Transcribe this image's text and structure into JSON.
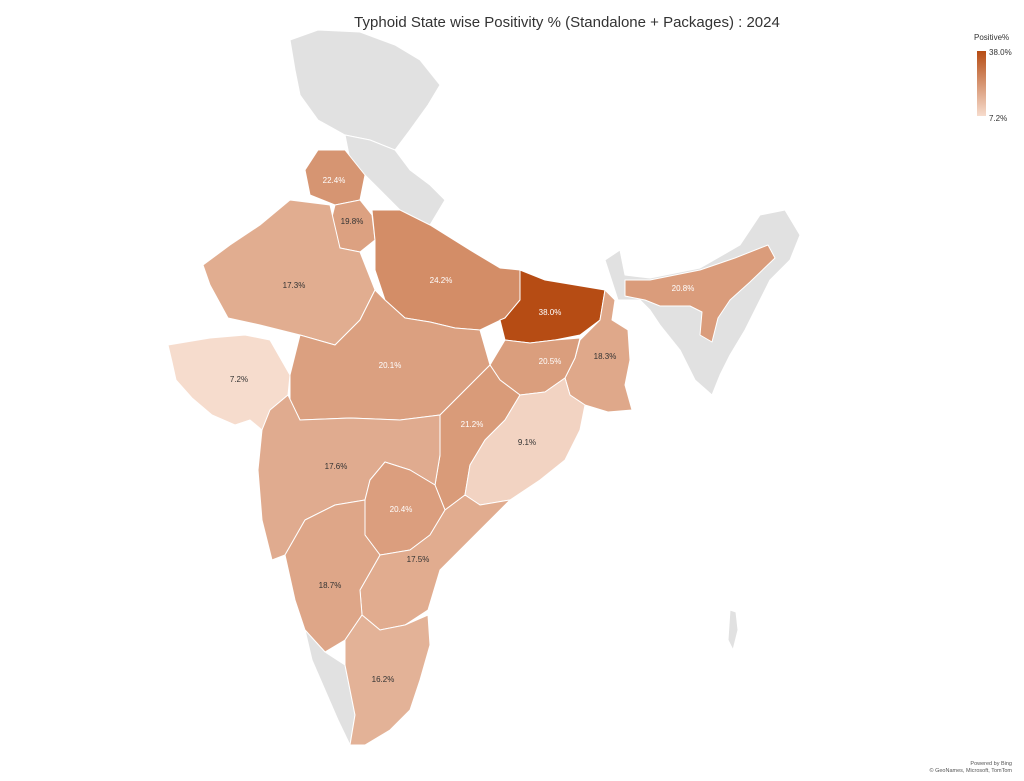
{
  "title": "Typhoid State wise Positivity % (Standalone + Packages) : 2024",
  "legend": {
    "title": "Positive%",
    "max_label": "38.0%",
    "min_label": "7.2%",
    "color_low": "#f6dccd",
    "color_high": "#b64c14",
    "no_data_color": "#e1e1e1"
  },
  "attribution": {
    "line1": "Powered by Bing",
    "line2": "© GeoNames, Microsoft, TomTom"
  },
  "regions": [
    {
      "name": "Punjab",
      "value": 22.4,
      "label": "22.4%"
    },
    {
      "name": "Haryana",
      "value": 19.8,
      "label": "19.8%"
    },
    {
      "name": "Rajasthan",
      "value": 17.3,
      "label": "17.3%"
    },
    {
      "name": "Uttar Pradesh",
      "value": 24.2,
      "label": "24.2%"
    },
    {
      "name": "Bihar",
      "value": 38.0,
      "label": "38.0%"
    },
    {
      "name": "Assam",
      "value": 20.8,
      "label": "20.8%"
    },
    {
      "name": "Gujarat",
      "value": 7.2,
      "label": "7.2%"
    },
    {
      "name": "Madhya Pradesh",
      "value": 20.1,
      "label": "20.1%"
    },
    {
      "name": "Jharkhand",
      "value": 20.5,
      "label": "20.5%"
    },
    {
      "name": "West Bengal",
      "value": 18.3,
      "label": "18.3%"
    },
    {
      "name": "Chhattisgarh",
      "value": 21.2,
      "label": "21.2%"
    },
    {
      "name": "Odisha",
      "value": 9.1,
      "label": "9.1%"
    },
    {
      "name": "Maharashtra",
      "value": 17.6,
      "label": "17.6%"
    },
    {
      "name": "Telangana",
      "value": 20.4,
      "label": "20.4%"
    },
    {
      "name": "Andhra Pradesh",
      "value": 17.5,
      "label": "17.5%"
    },
    {
      "name": "Karnataka",
      "value": 18.7,
      "label": "18.7%"
    },
    {
      "name": "Tamil Nadu",
      "value": 16.2,
      "label": "16.2%"
    },
    {
      "name": "Jammu and Kashmir",
      "value": null,
      "label": ""
    },
    {
      "name": "Kerala",
      "value": null,
      "label": ""
    },
    {
      "name": "Northeast India",
      "value": null,
      "label": ""
    }
  ]
}
